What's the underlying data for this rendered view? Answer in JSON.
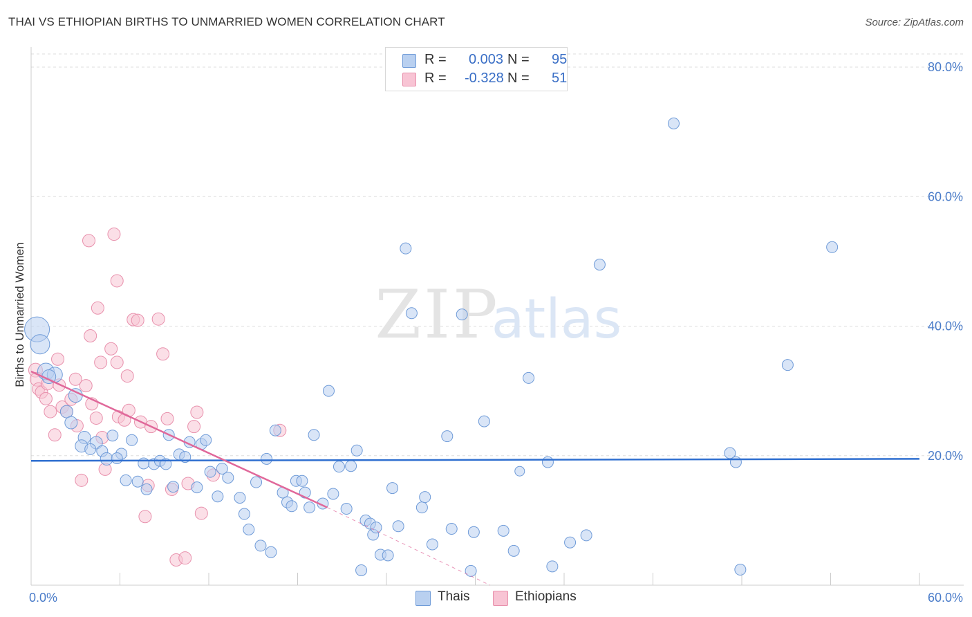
{
  "title": "THAI VS ETHIOPIAN BIRTHS TO UNMARRIED WOMEN CORRELATION CHART",
  "source": "Source: ZipAtlas.com",
  "watermark": {
    "zip": "ZIP",
    "atlas": "atlas"
  },
  "legend": {
    "r_label": "R =",
    "n_label": "N =",
    "rows": [
      {
        "name": "Thais",
        "r": "0.003",
        "n": "95"
      },
      {
        "name": "Ethiopians",
        "r": "-0.328",
        "n": "51"
      }
    ]
  },
  "colors": {
    "thai_fill": "#b9d0f0",
    "thai_stroke": "#6f9bd8",
    "thai_line": "#2f6fd0",
    "eth_fill": "#f8c4d4",
    "eth_stroke": "#e890ac",
    "eth_line": "#e0689a",
    "grid": "#dddddd",
    "tick_text": "#4a7cc9"
  },
  "chart_data": {
    "type": "scatter",
    "title": "THAI VS ETHIOPIAN BIRTHS TO UNMARRIED WOMEN CORRELATION CHART",
    "xlabel": "",
    "ylabel": "Births to Unmarried Women",
    "xlim": [
      0,
      60
    ],
    "ylim": [
      0,
      82
    ],
    "x_tick_labels": [
      {
        "value": 0,
        "label": "0.0%"
      },
      {
        "value": 60,
        "label": "60.0%"
      }
    ],
    "y_tick_labels": [
      {
        "value": 20,
        "label": "20.0%"
      },
      {
        "value": 40,
        "label": "40.0%"
      },
      {
        "value": 60,
        "label": "60.0%"
      },
      {
        "value": 80,
        "label": "80.0%"
      }
    ],
    "grid": true,
    "legend_position": "top-center",
    "series": [
      {
        "name": "Thais",
        "trend": {
          "x": [
            0,
            60
          ],
          "y": [
            19.2,
            19.5
          ],
          "dashed_after": null
        },
        "points": [
          [
            0.4,
            39.5,
            18
          ],
          [
            0.6,
            37.2,
            14
          ],
          [
            1.0,
            33.0,
            12
          ],
          [
            1.6,
            32.5,
            11
          ],
          [
            1.2,
            32.2,
            10
          ],
          [
            3.0,
            29.3,
            10
          ],
          [
            2.4,
            26.8,
            9
          ],
          [
            2.7,
            25.1,
            9
          ],
          [
            3.6,
            22.8,
            9
          ],
          [
            4.4,
            22.0,
            9
          ],
          [
            3.4,
            21.5,
            9
          ],
          [
            4.0,
            21.0,
            8
          ],
          [
            4.8,
            20.7,
            8
          ],
          [
            6.1,
            20.3,
            8
          ],
          [
            5.1,
            19.5,
            9
          ],
          [
            5.8,
            19.6,
            8
          ],
          [
            5.5,
            23.1,
            8
          ],
          [
            6.8,
            22.4,
            8
          ],
          [
            7.6,
            18.8,
            8
          ],
          [
            8.3,
            18.7,
            8
          ],
          [
            8.7,
            19.2,
            8
          ],
          [
            9.1,
            18.7,
            8
          ],
          [
            9.3,
            23.2,
            8
          ],
          [
            10.0,
            20.2,
            8
          ],
          [
            10.4,
            19.8,
            8
          ],
          [
            10.7,
            22.1,
            8
          ],
          [
            11.5,
            21.8,
            8
          ],
          [
            11.8,
            22.4,
            8
          ],
          [
            6.4,
            16.2,
            8
          ],
          [
            7.2,
            16.0,
            8
          ],
          [
            7.8,
            14.8,
            8
          ],
          [
            9.6,
            15.2,
            8
          ],
          [
            11.2,
            15.1,
            8
          ],
          [
            12.1,
            17.5,
            8
          ],
          [
            12.6,
            13.7,
            8
          ],
          [
            12.9,
            18.0,
            8
          ],
          [
            13.3,
            16.6,
            8
          ],
          [
            14.1,
            13.5,
            8
          ],
          [
            14.4,
            11.0,
            8
          ],
          [
            14.7,
            8.6,
            8
          ],
          [
            15.2,
            15.9,
            8
          ],
          [
            15.5,
            6.1,
            8
          ],
          [
            15.9,
            19.5,
            8
          ],
          [
            16.2,
            5.1,
            8
          ],
          [
            16.5,
            23.9,
            8
          ],
          [
            17.0,
            14.3,
            8
          ],
          [
            17.3,
            12.8,
            8
          ],
          [
            17.6,
            12.2,
            8
          ],
          [
            17.9,
            16.1,
            8
          ],
          [
            18.3,
            16.1,
            8
          ],
          [
            18.5,
            14.3,
            8
          ],
          [
            18.8,
            12.0,
            8
          ],
          [
            19.1,
            23.2,
            8
          ],
          [
            19.7,
            12.6,
            8
          ],
          [
            20.1,
            30.0,
            8
          ],
          [
            20.4,
            14.1,
            8
          ],
          [
            20.8,
            18.3,
            8
          ],
          [
            21.3,
            11.8,
            8
          ],
          [
            21.6,
            18.4,
            8
          ],
          [
            22.0,
            20.8,
            8
          ],
          [
            22.3,
            2.3,
            8
          ],
          [
            22.6,
            10.0,
            8
          ],
          [
            22.9,
            9.5,
            8
          ],
          [
            23.1,
            7.8,
            8
          ],
          [
            23.3,
            8.9,
            8
          ],
          [
            23.6,
            4.7,
            8
          ],
          [
            24.1,
            4.6,
            8
          ],
          [
            24.4,
            15.0,
            8
          ],
          [
            24.8,
            9.1,
            8
          ],
          [
            25.3,
            52.0,
            8
          ],
          [
            25.7,
            42.0,
            8
          ],
          [
            26.4,
            12.0,
            8
          ],
          [
            26.6,
            13.6,
            8
          ],
          [
            27.1,
            6.3,
            8
          ],
          [
            28.1,
            23.0,
            8
          ],
          [
            28.4,
            8.7,
            8
          ],
          [
            29.1,
            41.8,
            8
          ],
          [
            29.7,
            2.2,
            8
          ],
          [
            29.9,
            8.2,
            8
          ],
          [
            30.6,
            25.3,
            8
          ],
          [
            31.9,
            8.4,
            8
          ],
          [
            32.6,
            5.3,
            8
          ],
          [
            33.6,
            32.0,
            8
          ],
          [
            34.9,
            19.0,
            8
          ],
          [
            35.2,
            2.9,
            8
          ],
          [
            36.4,
            6.6,
            8
          ],
          [
            37.5,
            7.7,
            8
          ],
          [
            38.4,
            49.5,
            8
          ],
          [
            43.4,
            71.3,
            8
          ],
          [
            47.2,
            20.4,
            8
          ],
          [
            47.6,
            19.0,
            8
          ],
          [
            47.9,
            2.4,
            8
          ],
          [
            51.1,
            34.0,
            8
          ],
          [
            54.1,
            52.2,
            8
          ],
          [
            33.0,
            17.6,
            7
          ]
        ]
      },
      {
        "name": "Ethiopians",
        "trend": {
          "x": [
            0,
            20
          ],
          "y": [
            33.0,
            12.0
          ],
          "dashed_to": [
            31,
            0
          ]
        },
        "points": [
          [
            0.3,
            33.2,
            10
          ],
          [
            0.4,
            31.8,
            10
          ],
          [
            0.5,
            30.3,
            9
          ],
          [
            0.7,
            29.8,
            9
          ],
          [
            1.0,
            28.8,
            9
          ],
          [
            1.1,
            31.1,
            9
          ],
          [
            1.3,
            26.8,
            9
          ],
          [
            1.6,
            23.2,
            9
          ],
          [
            1.8,
            34.9,
            9
          ],
          [
            1.9,
            30.9,
            9
          ],
          [
            2.1,
            27.5,
            9
          ],
          [
            2.4,
            26.8,
            9
          ],
          [
            2.7,
            28.7,
            9
          ],
          [
            3.0,
            31.8,
            9
          ],
          [
            3.1,
            24.6,
            9
          ],
          [
            3.4,
            16.2,
            9
          ],
          [
            3.7,
            30.8,
            9
          ],
          [
            4.0,
            38.5,
            9
          ],
          [
            4.1,
            28.0,
            9
          ],
          [
            4.4,
            25.8,
            9
          ],
          [
            4.7,
            34.4,
            9
          ],
          [
            4.8,
            22.8,
            9
          ],
          [
            5.0,
            17.9,
            9
          ],
          [
            5.4,
            36.5,
            9
          ],
          [
            5.8,
            34.4,
            9
          ],
          [
            5.9,
            26.0,
            9
          ],
          [
            6.3,
            25.5,
            9
          ],
          [
            6.5,
            32.3,
            9
          ],
          [
            6.6,
            27.0,
            9
          ],
          [
            6.9,
            41.0,
            9
          ],
          [
            7.2,
            40.9,
            9
          ],
          [
            7.4,
            25.2,
            9
          ],
          [
            7.7,
            10.6,
            9
          ],
          [
            7.9,
            15.4,
            9
          ],
          [
            8.1,
            24.5,
            9
          ],
          [
            8.6,
            41.1,
            9
          ],
          [
            8.9,
            35.7,
            9
          ],
          [
            9.2,
            25.7,
            9
          ],
          [
            9.5,
            14.8,
            9
          ],
          [
            9.8,
            3.9,
            9
          ],
          [
            10.4,
            4.2,
            9
          ],
          [
            10.6,
            15.7,
            9
          ],
          [
            11.0,
            24.5,
            9
          ],
          [
            11.2,
            26.7,
            9
          ],
          [
            11.5,
            11.1,
            9
          ],
          [
            12.3,
            17.0,
            9
          ],
          [
            16.8,
            23.9,
            9
          ],
          [
            3.9,
            53.2,
            9
          ],
          [
            5.6,
            54.2,
            9
          ],
          [
            4.5,
            42.8,
            9
          ],
          [
            5.8,
            47.0,
            9
          ]
        ]
      }
    ]
  }
}
